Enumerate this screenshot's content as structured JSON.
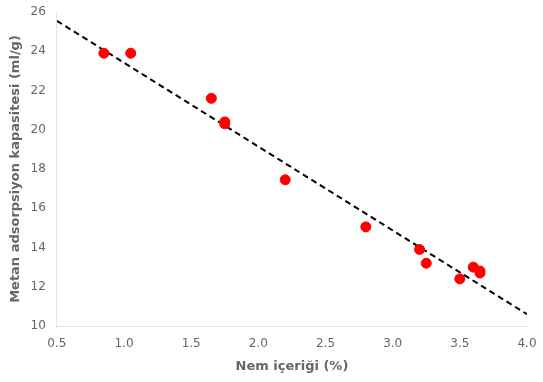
{
  "chart_data": {
    "type": "scatter",
    "xlabel": "Nem içeriği (%)",
    "ylabel": "Metan adsorpsiyon kapasitesi (ml/g)",
    "series": [
      {
        "type": "scatter",
        "color": "#FF0000",
        "marker": "circle",
        "x": [
          0.85,
          1.05,
          1.65,
          1.75,
          1.75,
          2.2,
          2.8,
          3.2,
          3.25,
          3.5,
          3.6,
          3.65,
          3.65
        ],
        "values": [
          23.9,
          23.9,
          21.6,
          20.4,
          20.3,
          17.45,
          15.05,
          13.9,
          13.2,
          12.4,
          13.0,
          12.7,
          12.8
        ]
      },
      {
        "type": "line",
        "color": "#000000",
        "line_style": "dashed",
        "x": [
          0.5,
          4.0
        ],
        "values": [
          25.55,
          10.6
        ]
      }
    ],
    "xlim": [
      0.5,
      4.0
    ],
    "ylim": [
      10,
      26
    ],
    "xticks": [
      0.5,
      {
        "value": 1.0,
        "label": "1.0"
      },
      1.5,
      {
        "value": 2.0,
        "label": "2.0"
      },
      2.5,
      {
        "value": 3.0,
        "label": "3.0"
      },
      3.5,
      {
        "value": 4.0,
        "label": "4.0"
      }
    ],
    "yticks": [
      10,
      12,
      14,
      16,
      18,
      20,
      22,
      24,
      26
    ],
    "grid": false
  }
}
